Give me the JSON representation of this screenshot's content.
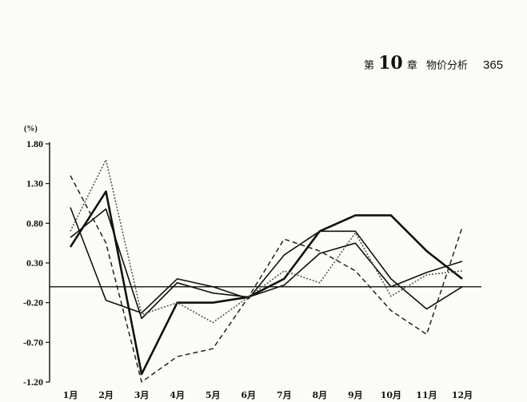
{
  "page_header": {
    "chapter_prefix": "第",
    "chapter_number": "10",
    "chapter_suffix": "章",
    "chapter_title": "物价分析",
    "page_number": "365"
  },
  "chart_data": {
    "type": "line",
    "title": "",
    "ylabel": "(%)",
    "xlabel": "",
    "ylim": [
      -1.2,
      1.8
    ],
    "yticks": [
      1.8,
      1.3,
      0.8,
      0.3,
      -0.2,
      -0.7,
      -1.2
    ],
    "ytick_labels": [
      "1.80",
      "1.30",
      "0.80",
      "0.30",
      "-0.20",
      "-0.70",
      "-1.20"
    ],
    "categories": [
      "1月",
      "2月",
      "3月",
      "4月",
      "5月",
      "6月",
      "7月",
      "8月",
      "9月",
      "10月",
      "11月",
      "12月"
    ],
    "baseline": 0.0,
    "grid": false,
    "legend": "none",
    "series": [
      {
        "style": "solid-thick",
        "color": "#111111",
        "values": [
          0.5,
          1.2,
          -1.1,
          -0.2,
          -0.2,
          -0.13,
          0.1,
          0.7,
          0.9,
          0.9,
          0.45,
          0.1
        ]
      },
      {
        "style": "solid",
        "color": "#111111",
        "values": [
          1.0,
          -0.17,
          -0.33,
          0.1,
          0.0,
          -0.15,
          0.4,
          0.7,
          0.7,
          0.1,
          -0.28,
          0.0
        ]
      },
      {
        "style": "solid",
        "color": "#111111",
        "values": [
          0.62,
          0.98,
          -0.4,
          0.05,
          -0.08,
          -0.13,
          0.02,
          0.42,
          0.55,
          0.0,
          0.18,
          0.32
        ]
      },
      {
        "style": "dashed",
        "color": "#222222",
        "values": [
          1.4,
          0.55,
          -1.2,
          -0.88,
          -0.78,
          -0.13,
          0.6,
          0.45,
          0.2,
          -0.3,
          -0.6,
          0.75
        ]
      },
      {
        "style": "dotted",
        "color": "#555555",
        "values": [
          0.7,
          1.6,
          -0.35,
          -0.2,
          -0.45,
          -0.13,
          0.2,
          0.05,
          0.68,
          -0.12,
          0.15,
          0.2
        ]
      }
    ]
  }
}
